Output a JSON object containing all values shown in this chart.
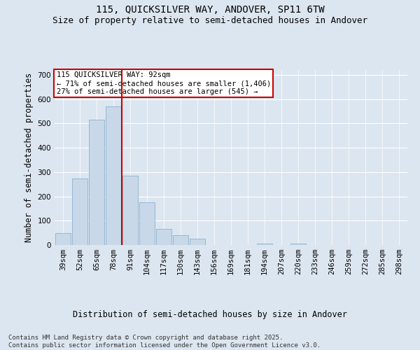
{
  "title_line1": "115, QUICKSILVER WAY, ANDOVER, SP11 6TW",
  "title_line2": "Size of property relative to semi-detached houses in Andover",
  "xlabel": "Distribution of semi-detached houses by size in Andover",
  "ylabel": "Number of semi-detached properties",
  "footnote": "Contains HM Land Registry data © Crown copyright and database right 2025.\nContains public sector information licensed under the Open Government Licence v3.0.",
  "bar_labels": [
    "39sqm",
    "52sqm",
    "65sqm",
    "78sqm",
    "91sqm",
    "104sqm",
    "117sqm",
    "130sqm",
    "143sqm",
    "156sqm",
    "169sqm",
    "181sqm",
    "194sqm",
    "207sqm",
    "220sqm",
    "233sqm",
    "246sqm",
    "259sqm",
    "272sqm",
    "285sqm",
    "298sqm"
  ],
  "bar_values": [
    50,
    275,
    515,
    570,
    285,
    175,
    65,
    40,
    25,
    0,
    0,
    0,
    5,
    0,
    5,
    0,
    0,
    0,
    0,
    0,
    0
  ],
  "bar_color": "#c8d8e8",
  "bar_edgecolor": "#7da8c8",
  "vline_x": 3.5,
  "vline_color": "#cc0000",
  "annotation_title": "115 QUICKSILVER WAY: 92sqm",
  "annotation_line2": "← 71% of semi-detached houses are smaller (1,406)",
  "annotation_line3": "27% of semi-detached houses are larger (545) →",
  "annotation_box_color": "#ffffff",
  "annotation_box_edgecolor": "#cc0000",
  "ylim": [
    0,
    720
  ],
  "yticks": [
    0,
    100,
    200,
    300,
    400,
    500,
    600,
    700
  ],
  "background_color": "#dce6f0",
  "plot_background": "#dce6f0",
  "title_fontsize": 10,
  "subtitle_fontsize": 9,
  "axis_label_fontsize": 8.5,
  "tick_fontsize": 7.5,
  "annotation_fontsize": 7.5,
  "footnote_fontsize": 6.5
}
